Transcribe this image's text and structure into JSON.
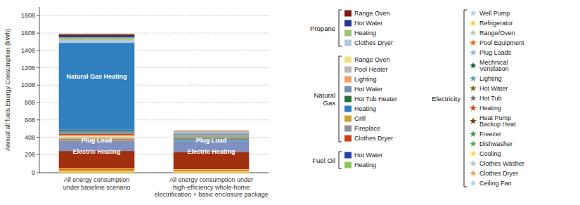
{
  "chart_data": {
    "type": "bar",
    "stacked": true,
    "grid": true,
    "categories": [
      "All energy consumption\nunder baseline scenario",
      "All energy consumption under\nhigh-efficiency whole-home\nelectrification + basic enclosure package"
    ],
    "y_label": "Annual all fuels Energy Consumption (kWh)",
    "ylim": [
      0,
      1908
    ],
    "yticks": [
      0,
      208,
      408,
      608,
      808,
      1008,
      1208,
      1408,
      1608,
      1808
    ],
    "series": [
      {
        "values": [
          25,
          20
        ],
        "colors": [
          "#f7c944",
          "#f7c944"
        ]
      },
      {
        "values": [
          18,
          15
        ],
        "colors": [
          "#e07020",
          "#e07020"
        ]
      },
      {
        "values": [
          7,
          5
        ],
        "colors": [
          "#f0e040",
          "#f0e040"
        ]
      },
      {
        "values": [
          200,
          200
        ],
        "colors": [
          "#a03010",
          "#a03010"
        ]
      },
      {
        "values": [
          120,
          120
        ],
        "colors": [
          "#8090c0",
          "#8090c0"
        ]
      },
      {
        "values": [
          10,
          10
        ],
        "colors": [
          "#d0a030",
          "#3080c0"
        ]
      },
      {
        "values": [
          8,
          8
        ],
        "colors": [
          "#909090",
          "#6898b8"
        ]
      },
      {
        "values": [
          12,
          8
        ],
        "colors": [
          "#f0a060",
          "#707070"
        ]
      },
      {
        "values": [
          12,
          8
        ],
        "colors": [
          "#b8c8dc",
          "#806828"
        ]
      },
      {
        "values": [
          18,
          6
        ],
        "colors": [
          "#f0e080",
          "#60a860"
        ]
      },
      {
        "values": [
          18,
          5
        ],
        "colors": [
          "#d04010",
          "#38984a"
        ]
      },
      {
        "values": [
          35,
          4
        ],
        "colors": [
          "#7090b0",
          "#704018"
        ]
      },
      {
        "values": [
          12,
          6
        ],
        "colors": [
          "#287040",
          "#c0c0c0"
        ]
      },
      {
        "values": [
          1000,
          6
        ],
        "colors": [
          "#3080c0",
          "#808080"
        ]
      },
      {
        "values": [
          35,
          5
        ],
        "colors": [
          "#b0c8e0",
          "#d04010"
        ]
      },
      {
        "values": [
          28,
          8
        ],
        "colors": [
          "#a0c070",
          "#a8d0f0"
        ]
      },
      {
        "values": [
          18,
          8
        ],
        "colors": [
          "#283898",
          "#186030"
        ]
      },
      {
        "values": [
          15,
          25
        ],
        "colors": [
          "#801810",
          "#90b8d8"
        ]
      },
      {
        "values": [
          6,
          12
        ],
        "colors": [
          "#2840a8",
          "#f0a060"
        ]
      },
      {
        "values": [
          5,
          12
        ],
        "colors": [
          "#90c858",
          "#bdbdbd"
        ]
      }
    ],
    "annotations": [
      {
        "text": "Electric Heating",
        "category": 0,
        "y": 242
      },
      {
        "text": "Plug Load",
        "category": 0,
        "y": 368
      },
      {
        "text": "Natural Gas Heating",
        "category": 0,
        "y": 1108
      },
      {
        "text": "Electric Heating",
        "category": 1,
        "y": 242
      },
      {
        "text": "Plug Load",
        "category": 1,
        "y": 368
      }
    ],
    "legend_groups": [
      {
        "title": "Propane",
        "marker": "square",
        "items": [
          {
            "name": "Range Oven",
            "color": "#801810"
          },
          {
            "name": "Hot Water",
            "color": "#283898"
          },
          {
            "name": "Heating",
            "color": "#a0c070"
          },
          {
            "name": "Clothes Dryer",
            "color": "#b0c8e0"
          }
        ]
      },
      {
        "title": "Natural\nGas",
        "marker": "square",
        "items": [
          {
            "name": "Range Oven",
            "color": "#f0e080"
          },
          {
            "name": "Pool Heater",
            "color": "#b8b8b8"
          },
          {
            "name": "Lighting",
            "color": "#f0a060"
          },
          {
            "name": "Hot Water",
            "color": "#7090b0"
          },
          {
            "name": "Hot Tub Heater",
            "color": "#287040"
          },
          {
            "name": "Heating",
            "color": "#3080c0"
          },
          {
            "name": "Grill",
            "color": "#d0a030"
          },
          {
            "name": "Fireplace",
            "color": "#909090"
          },
          {
            "name": "Clothes Dryer",
            "color": "#d04010"
          }
        ]
      },
      {
        "title": "Fuel Oil",
        "marker": "square",
        "items": [
          {
            "name": "Hot Water",
            "color": "#2840a8"
          },
          {
            "name": "Heating",
            "color": "#90c858"
          }
        ]
      },
      {
        "title": "Electricity",
        "marker": "star",
        "items": [
          {
            "name": "Well Pump",
            "color": "#b0c8e0"
          },
          {
            "name": "Refrigerator",
            "color": "#f7c944"
          },
          {
            "name": "Range/Oven",
            "color": "#c0c0c0"
          },
          {
            "name": "Pool Equipment",
            "color": "#e07020"
          },
          {
            "name": "Plug Loads",
            "color": "#90b8d8"
          },
          {
            "name": "Mechnical\nVentilation",
            "color": "#186030"
          },
          {
            "name": "Lighting",
            "color": "#6898b8"
          },
          {
            "name": "Hot Water",
            "color": "#806828"
          },
          {
            "name": "Hot Tub",
            "color": "#707070"
          },
          {
            "name": "Heating",
            "color": "#d04010"
          },
          {
            "name": "Heat Pump\nBackup Heat",
            "color": "#704018"
          },
          {
            "name": "Freezer",
            "color": "#38984a"
          },
          {
            "name": "Dishwasher",
            "color": "#60a860"
          },
          {
            "name": "Cooling",
            "color": "#f0e040"
          },
          {
            "name": "Clothes Washer",
            "color": "#c0c0c0"
          },
          {
            "name": "Clothes Dryer",
            "color": "#f0a060"
          },
          {
            "name": "Ceiling Fan",
            "color": "#a8d0f0"
          }
        ]
      }
    ]
  }
}
